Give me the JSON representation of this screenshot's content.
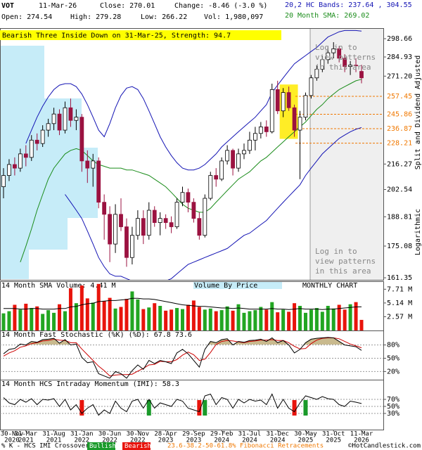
{
  "header": {
    "symbol": "VOT",
    "date": "11-Mar-26",
    "close": "Close: 270.01",
    "change": "Change: -8.46 (-3.0 %)",
    "open": "Open: 274.54",
    "high": "High: 279.28",
    "low": "Low: 266.22",
    "volume": "Vol: 1,980,097",
    "bands": "20,2 HC Bands: 237.64 , 304.55",
    "sma": "20 Month SMA: 269.02"
  },
  "chart_data": {
    "type": "candlestick",
    "annotation": "Bearish Three Inside Down on 31-Mar-25, Strength: 94.7",
    "log_scale": true,
    "y_label": "Split and Dividend Adjusted",
    "scale_label": "Logarithmic",
    "login_notice": [
      "Log in to",
      "view patterns",
      "in this area"
    ],
    "x": [
      "2020-11",
      "2020-12",
      "2021-01",
      "2021-02",
      "2021-03",
      "2021-04",
      "2021-05",
      "2021-06",
      "2021-07",
      "2021-08",
      "2021-09",
      "2021-10",
      "2021-11",
      "2021-12",
      "2022-01",
      "2022-02",
      "2022-03",
      "2022-04",
      "2022-05",
      "2022-06",
      "2022-07",
      "2022-08",
      "2022-09",
      "2022-10",
      "2022-11",
      "2022-12",
      "2023-01",
      "2023-02",
      "2023-03",
      "2023-04",
      "2023-05",
      "2023-06",
      "2023-07",
      "2023-08",
      "2023-09",
      "2023-10",
      "2023-11",
      "2023-12",
      "2024-01",
      "2024-02",
      "2024-03",
      "2024-04",
      "2024-05",
      "2024-06",
      "2024-07",
      "2024-08",
      "2024-09",
      "2024-10",
      "2024-11",
      "2024-12",
      "2025-01",
      "2025-02",
      "2025-03",
      "2025-04",
      "2025-05",
      "2025-06",
      "2025-07",
      "2025-08",
      "2025-09",
      "2025-10",
      "2025-11",
      "2025-12",
      "2026-01",
      "2026-02",
      "2026-03"
    ],
    "xticks": [
      {
        "value": "2020-11",
        "label": "30-Nov",
        "sublabel": "2020"
      },
      {
        "value": "2021-03",
        "label": "31-Mar",
        "sublabel": "2021"
      },
      {
        "value": "2021-08",
        "label": "31-Aug",
        "sublabel": "2021"
      },
      {
        "value": "2022-01",
        "label": "31-Jan",
        "sublabel": "2022"
      },
      {
        "value": "2022-06",
        "label": "30-Jun",
        "sublabel": "2022"
      },
      {
        "value": "2022-11",
        "label": "30-Nov",
        "sublabel": "2022"
      },
      {
        "value": "2023-04",
        "label": "28-Apr",
        "sublabel": "2023"
      },
      {
        "value": "2023-09",
        "label": "29-Sep",
        "sublabel": "2023"
      },
      {
        "value": "2024-02",
        "label": "29-Feb",
        "sublabel": "2024"
      },
      {
        "value": "2024-07",
        "label": "31-Jul",
        "sublabel": "2024"
      },
      {
        "value": "2024-12",
        "label": "31-Dec",
        "sublabel": "2024"
      },
      {
        "value": "2025-05",
        "label": "30-May",
        "sublabel": "2025"
      },
      {
        "value": "2025-10",
        "label": "31-Oct",
        "sublabel": "2025"
      },
      {
        "value": "2026-03",
        "label": "11-Mar",
        "sublabel": "2026"
      }
    ],
    "open": [
      204,
      210,
      216,
      214,
      222,
      220,
      230,
      228,
      236,
      240,
      246,
      236,
      250,
      242,
      244,
      218,
      214,
      218,
      196,
      190,
      176,
      190,
      184,
      170,
      180,
      188,
      180,
      192,
      186,
      188,
      186,
      184,
      196,
      201,
      196,
      188,
      180,
      198,
      210,
      208,
      218,
      224,
      214,
      222,
      224,
      230,
      234,
      238,
      235,
      262,
      248,
      260,
      250,
      236,
      244,
      258,
      270,
      276,
      283,
      288,
      291,
      284,
      278,
      279,
      274.54
    ],
    "high": [
      214,
      219,
      220,
      225,
      227,
      233,
      234,
      239,
      243,
      250,
      249,
      254,
      256,
      249,
      246,
      224,
      222,
      220,
      200,
      194,
      195,
      198,
      188,
      184,
      192,
      192,
      196,
      194,
      191,
      190,
      189,
      198,
      204,
      203,
      198,
      191,
      200,
      212,
      214,
      220,
      227,
      225,
      225,
      228,
      235,
      238,
      241,
      242,
      266,
      268,
      263,
      264,
      252,
      248,
      260,
      272,
      279,
      286,
      292,
      296,
      293,
      287,
      282,
      284,
      279.28
    ],
    "low": [
      198,
      207,
      210,
      212,
      215,
      218,
      224,
      226,
      232,
      236,
      233,
      234,
      238,
      236,
      212,
      206,
      204,
      193,
      178,
      168,
      172,
      182,
      166,
      167,
      178,
      176,
      178,
      184,
      180,
      183,
      181,
      183,
      194,
      191,
      186,
      178,
      179,
      197,
      204,
      207,
      216,
      210,
      212,
      219,
      222,
      224,
      231,
      232,
      234,
      246,
      244,
      248,
      232,
      208,
      242,
      256,
      268,
      274,
      280,
      284,
      281,
      274,
      272,
      274,
      266.22
    ],
    "close": [
      210,
      216,
      214,
      222,
      220,
      230,
      228,
      236,
      240,
      246,
      236,
      250,
      242,
      244,
      218,
      214,
      218,
      196,
      190,
      176,
      190,
      184,
      170,
      180,
      188,
      180,
      192,
      186,
      188,
      186,
      184,
      196,
      201,
      196,
      188,
      180,
      198,
      210,
      208,
      218,
      224,
      214,
      222,
      224,
      230,
      234,
      238,
      235,
      262,
      248,
      260,
      250,
      236,
      244,
      258,
      270,
      276,
      283,
      288,
      291,
      284,
      278,
      279,
      278.47,
      270.01
    ],
    "up_color": "#ffffff",
    "down_color": "#9b1240",
    "ylim": [
      160.5,
      306.9
    ],
    "yticks": [
      298.66,
      284.93,
      {
        "value": 271.2,
        "label": "271.20"
      },
      216.27,
      202.54,
      188.81,
      175.08,
      161.35
    ],
    "fib_levels": [
      257.45,
      245.86,
      236.87,
      228.21
    ],
    "fib_color": "#f07800",
    "pattern_months": [
      "2025-01",
      "2025-02",
      "2025-03"
    ],
    "overlays": [
      {
        "color": "#1414b4",
        "values": [
          null,
          null,
          null,
          null,
          228,
          236,
          244,
          251,
          257,
          262,
          265,
          266,
          266,
          264,
          259,
          252,
          244,
          236,
          232,
          240,
          250,
          258,
          263,
          264,
          262,
          256,
          248,
          240,
          232,
          226,
          221,
          217,
          214,
          213,
          213,
          214,
          216,
          219,
          222,
          226,
          229,
          232,
          235,
          238,
          241,
          244,
          248,
          252,
          260,
          265,
          270,
          275,
          280,
          283,
          286,
          289,
          292,
          296,
          300,
          302,
          304,
          305,
          305,
          305,
          304.55
        ]
      },
      {
        "color": "#1414b4",
        "values": [
          null,
          null,
          null,
          null,
          null,
          null,
          null,
          null,
          null,
          null,
          null,
          200,
          196,
          192,
          188,
          182,
          176,
          170,
          166,
          163,
          162,
          162,
          161,
          160,
          160,
          160,
          159,
          159,
          159,
          160,
          161,
          163,
          165,
          167,
          168,
          169,
          170,
          171,
          172,
          173,
          174,
          176,
          178,
          180,
          181,
          183,
          185,
          187,
          190,
          193,
          196,
          199,
          202,
          205,
          210,
          214,
          218,
          222,
          225,
          228,
          231,
          233,
          235,
          236.5,
          237.64
        ]
      },
      {
        "color": "#1a8c1a",
        "values": [
          null,
          null,
          null,
          168,
          175,
          183,
          192,
          200,
          208,
          214,
          218,
          222,
          224,
          225,
          224,
          221,
          218,
          216,
          215,
          214,
          214,
          214,
          213,
          213,
          212,
          211,
          210,
          208,
          206,
          204,
          201,
          198,
          195,
          193,
          192,
          191,
          191,
          193,
          196,
          199,
          202,
          205,
          208,
          210,
          212,
          215,
          218,
          220,
          223,
          226,
          229,
          232,
          235,
          238,
          241,
          245,
          249,
          252,
          256,
          259,
          262,
          264,
          266,
          268,
          269.02
        ]
      }
    ],
    "volume": {
      "title": "14 Month SMA Volume: 4.41 M",
      "by_price_label": "Volume By Price",
      "chart_label": "MONTHLY CHART",
      "up_color": "#22a622",
      "down_color": "#e8140c",
      "sma_color": "#000000",
      "values": [
        3.2,
        3.6,
        4.8,
        3.9,
        5.0,
        4.2,
        4.5,
        3.1,
        3.8,
        3.3,
        4.9,
        3.6,
        7.9,
        5.1,
        8.4,
        6.0,
        5.2,
        8.7,
        5.5,
        6.1,
        4.1,
        4.4,
        5.9,
        7.3,
        5.8,
        4.0,
        4.3,
        5.1,
        4.6,
        3.7,
        3.9,
        4.2,
        4.0,
        4.8,
        5.6,
        4.4,
        3.9,
        4.1,
        3.6,
        3.8,
        4.5,
        3.7,
        4.9,
        3.3,
        3.6,
        3.8,
        4.4,
        3.9,
        5.3,
        3.4,
        3.9,
        3.5,
        5.1,
        4.6,
        3.3,
        3.9,
        4.2,
        3.5,
        4.6,
        4.1,
        4.8,
        3.9,
        4.9,
        5.3,
        1.98
      ],
      "sma": [
        4.1,
        4.1,
        4.1,
        4.0,
        4.0,
        4.1,
        4.1,
        4.0,
        4.0,
        4.0,
        4.1,
        4.1,
        4.4,
        4.5,
        4.8,
        5.0,
        5.1,
        5.4,
        5.5,
        5.6,
        5.6,
        5.7,
        5.8,
        6.0,
        6.0,
        5.9,
        5.9,
        5.8,
        5.6,
        5.4,
        5.2,
        5.0,
        4.8,
        4.7,
        4.6,
        4.5,
        4.5,
        4.4,
        4.3,
        4.2,
        4.2,
        4.1,
        4.2,
        4.1,
        4.0,
        4.0,
        4.0,
        4.0,
        4.1,
        4.0,
        4.0,
        3.9,
        4.0,
        4.1,
        4.0,
        4.0,
        4.0,
        3.9,
        4.0,
        4.0,
        4.1,
        4.2,
        4.3,
        4.4,
        4.41
      ],
      "ylim": [
        0,
        9.2
      ],
      "yticks": [
        {
          "value": 7.71,
          "label": "7.71 M"
        },
        {
          "value": 5.14,
          "label": "5.14 M"
        },
        {
          "value": 2.57,
          "label": "2.57 M"
        }
      ]
    },
    "stochastic": {
      "title": "14 Month Fast Stochastic (%K) (%D): 67.8  73.6",
      "k_color": "#000000",
      "d_color": "#cc0000",
      "fill_color": "#c9ba8e",
      "fill_above": 80,
      "k": [
        60,
        70,
        72,
        82,
        80,
        88,
        86,
        92,
        93,
        95,
        84,
        92,
        80,
        82,
        52,
        40,
        42,
        15,
        10,
        5,
        20,
        15,
        5,
        22,
        35,
        25,
        45,
        38,
        45,
        42,
        38,
        62,
        70,
        60,
        45,
        30,
        70,
        88,
        85,
        92,
        94,
        80,
        88,
        86,
        90,
        91,
        93,
        88,
        96,
        85,
        90,
        80,
        62,
        70,
        85,
        93,
        95,
        96,
        97,
        96,
        88,
        80,
        78,
        76,
        67.8
      ],
      "d": [
        55,
        62,
        67,
        75,
        78,
        83,
        85,
        89,
        90,
        93,
        91,
        90,
        85,
        85,
        71,
        58,
        45,
        32,
        22,
        10,
        12,
        13,
        13,
        14,
        21,
        27,
        35,
        36,
        43,
        42,
        42,
        47,
        57,
        64,
        58,
        45,
        48,
        63,
        81,
        88,
        90,
        89,
        87,
        85,
        88,
        89,
        91,
        91,
        92,
        90,
        90,
        85,
        77,
        71,
        72,
        83,
        91,
        95,
        96,
        96,
        94,
        88,
        82,
        78,
        73.6
      ],
      "ylim": [
        0,
        100
      ],
      "yticks": [
        {
          "value": 80,
          "label": "80%"
        },
        {
          "value": 50,
          "label": "50%"
        },
        {
          "value": 20,
          "label": "20%"
        }
      ]
    },
    "imi": {
      "title": "14 Month HCS Intraday Momentum (IMI): 58.3",
      "color": "#000000",
      "values": [
        75,
        60,
        55,
        70,
        62,
        72,
        55,
        70,
        68,
        72,
        50,
        70,
        40,
        55,
        30,
        45,
        55,
        25,
        40,
        30,
        65,
        45,
        35,
        65,
        70,
        45,
        70,
        45,
        60,
        55,
        50,
        70,
        65,
        45,
        40,
        35,
        80,
        85,
        55,
        75,
        70,
        45,
        70,
        60,
        70,
        65,
        68,
        55,
        85,
        45,
        70,
        45,
        35,
        60,
        80,
        75,
        70,
        78,
        72,
        70,
        55,
        50,
        65,
        62,
        58.3
      ],
      "ylim": [
        0,
        100
      ],
      "yticks": [
        {
          "value": 70,
          "label": "70%"
        },
        {
          "value": 50,
          "label": "50%"
        },
        {
          "value": 30,
          "label": "30%"
        }
      ],
      "crossovers": {
        "bullish": [
          "2023-01",
          "2023-11",
          "2025-05"
        ],
        "bearish": [
          "2022-01",
          "2023-10",
          "2025-03"
        ]
      },
      "bullish_color": "#1a9a2a",
      "bearish_color": "#e8140c"
    }
  },
  "footer": {
    "crossover_label": "% K - HCS IMI Crossover:",
    "bullish": "Bullish",
    "bearish": "Bearish",
    "fib_label": "23.6-38.2-50-61.8% Fibonacci Retracements",
    "copyright": "©HotCandlestick.com"
  }
}
